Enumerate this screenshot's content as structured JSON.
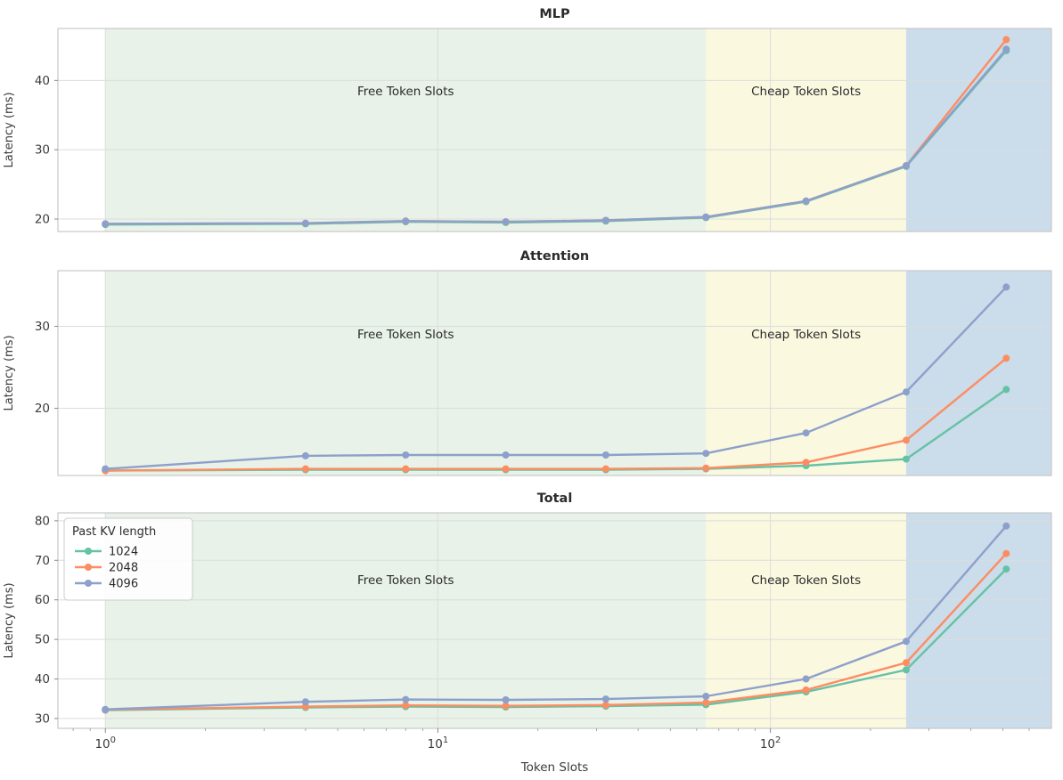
{
  "figure": {
    "xlabel": "Token Slots",
    "x_tick_exponents": [
      0,
      1,
      2
    ],
    "legend": {
      "title": "Past KV length",
      "entries": [
        {
          "label": "1024",
          "color": "#66c2a5"
        },
        {
          "label": "2048",
          "color": "#fc8d62"
        },
        {
          "label": "4096",
          "color": "#8da0cb"
        }
      ]
    }
  },
  "chart_data": [
    {
      "type": "line",
      "title": "MLP",
      "ylabel": "Latency (ms)",
      "xscale": "log",
      "xlim": [
        0.72,
        700
      ],
      "ylim": [
        18.2,
        47.5
      ],
      "yticks": [
        20,
        30,
        40
      ],
      "x": [
        1,
        4,
        8,
        16,
        32,
        64,
        128,
        256,
        512
      ],
      "regions": [
        {
          "label": "Free Token Slots",
          "from": 1,
          "to": 64,
          "color": "#e8f2e8"
        },
        {
          "label": "Cheap Token Slots",
          "from": 64,
          "to": 256,
          "color": "#fbf8e0"
        },
        {
          "label": "",
          "from": 256,
          "to": 700,
          "color": "#cbdcea"
        }
      ],
      "series": [
        {
          "name": "1024",
          "color": "#66c2a5",
          "values": [
            19.2,
            19.3,
            19.6,
            19.5,
            19.7,
            20.2,
            22.5,
            27.6,
            44.3
          ]
        },
        {
          "name": "2048",
          "color": "#fc8d62",
          "values": [
            19.3,
            19.4,
            19.7,
            19.6,
            19.8,
            20.3,
            22.6,
            27.7,
            45.9
          ]
        },
        {
          "name": "4096",
          "color": "#8da0cb",
          "values": [
            19.3,
            19.4,
            19.7,
            19.6,
            19.8,
            20.3,
            22.6,
            27.7,
            44.5
          ]
        }
      ],
      "legend": false
    },
    {
      "type": "line",
      "title": "Attention",
      "ylabel": "Latency (ms)",
      "xscale": "log",
      "xlim": [
        0.72,
        700
      ],
      "ylim": [
        11.8,
        36.8
      ],
      "yticks": [
        20,
        30
      ],
      "x": [
        1,
        4,
        8,
        16,
        32,
        64,
        128,
        256,
        512
      ],
      "regions": [
        {
          "label": "Free Token Slots",
          "from": 1,
          "to": 64,
          "color": "#e8f2e8"
        },
        {
          "label": "Cheap Token Slots",
          "from": 64,
          "to": 256,
          "color": "#fbf8e0"
        },
        {
          "label": "",
          "from": 256,
          "to": 700,
          "color": "#cbdcea"
        }
      ],
      "series": [
        {
          "name": "1024",
          "color": "#66c2a5",
          "values": [
            12.4,
            12.5,
            12.5,
            12.5,
            12.5,
            12.6,
            13.0,
            13.8,
            22.3
          ]
        },
        {
          "name": "2048",
          "color": "#fc8d62",
          "values": [
            12.4,
            12.6,
            12.6,
            12.6,
            12.6,
            12.7,
            13.4,
            16.1,
            26.1
          ]
        },
        {
          "name": "4096",
          "color": "#8da0cb",
          "values": [
            12.6,
            14.2,
            14.3,
            14.3,
            14.3,
            14.5,
            17.0,
            22.0,
            34.8
          ]
        }
      ],
      "legend": false
    },
    {
      "type": "line",
      "title": "Total",
      "ylabel": "Latency (ms)",
      "xscale": "log",
      "xlim": [
        0.72,
        700
      ],
      "ylim": [
        27.5,
        82
      ],
      "yticks": [
        30,
        40,
        50,
        60,
        70,
        80
      ],
      "x": [
        1,
        4,
        8,
        16,
        32,
        64,
        128,
        256,
        512
      ],
      "regions": [
        {
          "label": "Free Token Slots",
          "from": 1,
          "to": 64,
          "color": "#e8f2e8"
        },
        {
          "label": "Cheap Token Slots",
          "from": 64,
          "to": 256,
          "color": "#fbf8e0"
        },
        {
          "label": "",
          "from": 256,
          "to": 700,
          "color": "#cbdcea"
        }
      ],
      "series": [
        {
          "name": "1024",
          "color": "#66c2a5",
          "values": [
            32.1,
            32.8,
            33.0,
            32.9,
            33.1,
            33.5,
            36.7,
            42.3,
            67.8
          ]
        },
        {
          "name": "2048",
          "color": "#fc8d62",
          "values": [
            32.2,
            33.0,
            33.3,
            33.2,
            33.4,
            34.0,
            37.2,
            44.1,
            71.7
          ]
        },
        {
          "name": "4096",
          "color": "#8da0cb",
          "values": [
            32.3,
            34.2,
            34.8,
            34.7,
            34.9,
            35.6,
            40.0,
            49.5,
            78.7
          ]
        }
      ],
      "legend": true
    }
  ],
  "style": {
    "grid_color": "#dcdcdc",
    "spine_color": "#c9c9c9",
    "tick_color": "#888888",
    "text_color": "#3b3b3b",
    "title_color": "#2b2b2b",
    "legend_border": "#cccccc",
    "background": "#ffffff"
  }
}
